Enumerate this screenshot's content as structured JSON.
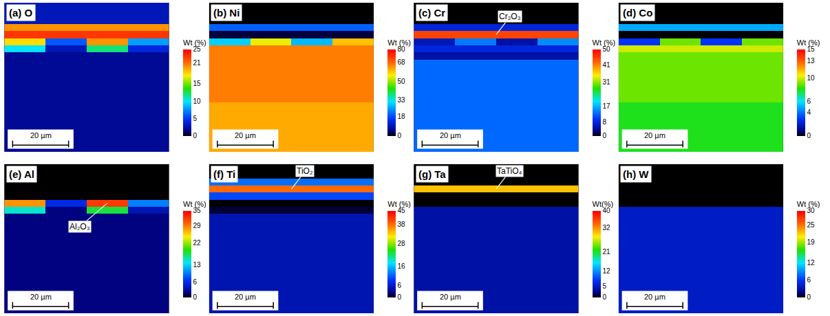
{
  "chart_data": [
    {
      "type": "heatmap",
      "title": "(a) O",
      "colorbar_title": "Wt (%)",
      "zlim": [
        0,
        25
      ],
      "zticks": [
        0,
        5,
        10,
        15,
        21,
        25
      ],
      "scale_bar": "20 µm",
      "tick_labels": false,
      "z": [
        [
          3,
          3,
          3,
          3
        ],
        [
          3,
          3,
          3,
          3
        ],
        [
          3,
          3,
          3,
          3
        ],
        [
          20,
          20,
          20,
          20
        ],
        [
          23,
          23,
          23,
          23
        ],
        [
          18,
          6,
          20,
          8
        ],
        [
          10,
          3,
          12,
          4
        ],
        [
          2,
          2,
          2,
          2
        ],
        [
          2,
          2,
          2,
          2
        ],
        [
          2,
          2,
          2,
          2
        ],
        [
          2,
          2,
          2,
          2
        ],
        [
          2,
          2,
          2,
          2
        ],
        [
          2,
          2,
          2,
          2
        ],
        [
          2,
          2,
          2,
          2
        ],
        [
          2,
          2,
          2,
          2
        ],
        [
          2,
          2,
          2,
          2
        ],
        [
          2,
          2,
          2,
          2
        ],
        [
          2,
          2,
          2,
          2
        ],
        [
          2,
          2,
          2,
          2
        ],
        [
          2,
          2,
          2,
          2
        ],
        [
          2,
          2,
          2,
          2
        ]
      ]
    },
    {
      "type": "heatmap",
      "title": "(b) Ni",
      "colorbar_title": "Wt (%)",
      "zlim": [
        0,
        80
      ],
      "zticks": [
        0,
        18,
        33,
        50,
        68,
        80
      ],
      "scale_bar": "20 µm",
      "tick_labels": false,
      "z": [
        [
          0,
          0,
          0,
          0
        ],
        [
          0,
          0,
          0,
          0
        ],
        [
          0,
          0,
          0,
          0
        ],
        [
          20,
          20,
          20,
          20
        ],
        [
          2,
          2,
          2,
          2
        ],
        [
          30,
          55,
          28,
          60
        ],
        [
          66,
          66,
          66,
          66
        ],
        [
          66,
          66,
          66,
          66
        ],
        [
          66,
          66,
          66,
          66
        ],
        [
          66,
          66,
          66,
          66
        ],
        [
          66,
          66,
          66,
          66
        ],
        [
          66,
          66,
          66,
          66
        ],
        [
          66,
          66,
          66,
          66
        ],
        [
          66,
          66,
          66,
          66
        ],
        [
          62,
          62,
          62,
          62
        ],
        [
          62,
          62,
          62,
          62
        ],
        [
          62,
          62,
          62,
          62
        ],
        [
          62,
          62,
          62,
          62
        ],
        [
          62,
          62,
          62,
          62
        ],
        [
          62,
          62,
          62,
          62
        ],
        [
          62,
          62,
          62,
          62
        ]
      ]
    },
    {
      "type": "heatmap",
      "title": "(c) Cr",
      "colorbar_title": "Wt (%)",
      "zlim": [
        0,
        50
      ],
      "zticks": [
        0,
        8,
        17,
        31,
        41,
        50
      ],
      "scale_bar": "20 µm",
      "tick_labels": false,
      "annotation": "Cr₂O₃",
      "z": [
        [
          0,
          0,
          0,
          0
        ],
        [
          0,
          0,
          0,
          0
        ],
        [
          0,
          0,
          0,
          0
        ],
        [
          8,
          8,
          8,
          8
        ],
        [
          45,
          45,
          45,
          45
        ],
        [
          6,
          14,
          5,
          15
        ],
        [
          8,
          8,
          8,
          8
        ],
        [
          5,
          5,
          5,
          5
        ],
        [
          13,
          13,
          13,
          13
        ],
        [
          13,
          13,
          13,
          13
        ],
        [
          13,
          13,
          13,
          13
        ],
        [
          13,
          13,
          13,
          13
        ],
        [
          13,
          13,
          13,
          13
        ],
        [
          13,
          13,
          13,
          13
        ],
        [
          13,
          13,
          13,
          13
        ],
        [
          13,
          13,
          13,
          13
        ],
        [
          13,
          13,
          13,
          13
        ],
        [
          13,
          13,
          13,
          13
        ],
        [
          13,
          13,
          13,
          13
        ],
        [
          13,
          13,
          13,
          13
        ],
        [
          13,
          13,
          13,
          13
        ]
      ]
    },
    {
      "type": "heatmap",
      "title": "(d) Co",
      "colorbar_title": "Wt (%)",
      "zlim": [
        0,
        15
      ],
      "zticks": [
        0,
        4,
        6,
        10,
        13,
        15
      ],
      "scale_bar": "20 µm",
      "tick_labels": false,
      "z": [
        [
          0,
          0,
          0,
          0
        ],
        [
          0,
          0,
          0,
          0
        ],
        [
          0,
          0,
          0,
          0
        ],
        [
          5,
          5,
          5,
          5
        ],
        [
          0,
          0,
          0,
          0
        ],
        [
          3,
          9,
          3,
          9
        ],
        [
          10,
          10,
          10,
          10
        ],
        [
          9,
          9,
          9,
          9
        ],
        [
          9,
          9,
          9,
          9
        ],
        [
          9,
          9,
          9,
          9
        ],
        [
          9,
          9,
          9,
          9
        ],
        [
          9,
          9,
          9,
          9
        ],
        [
          9,
          9,
          9,
          9
        ],
        [
          9,
          9,
          9,
          9
        ],
        [
          8,
          8,
          8,
          8
        ],
        [
          8,
          8,
          8,
          8
        ],
        [
          8,
          8,
          8,
          8
        ],
        [
          8,
          8,
          8,
          8
        ],
        [
          8,
          8,
          8,
          8
        ],
        [
          8,
          8,
          8,
          8
        ],
        [
          8,
          8,
          8,
          8
        ]
      ]
    },
    {
      "type": "heatmap",
      "title": "(e) Al",
      "colorbar_title": "Wt (%)",
      "zlim": [
        0,
        35
      ],
      "zticks": [
        0,
        6,
        13,
        22,
        29,
        35
      ],
      "scale_bar": "20 µm",
      "tick_labels": false,
      "annotation": "Al₂O₃",
      "z": [
        [
          0,
          0,
          0,
          0
        ],
        [
          0,
          0,
          0,
          0
        ],
        [
          0,
          0,
          0,
          0
        ],
        [
          0,
          0,
          0,
          0
        ],
        [
          0,
          0,
          0,
          0
        ],
        [
          28,
          6,
          32,
          10
        ],
        [
          15,
          2,
          18,
          4
        ],
        [
          2,
          2,
          2,
          2
        ],
        [
          2,
          2,
          2,
          2
        ],
        [
          2,
          2,
          2,
          2
        ],
        [
          2,
          2,
          2,
          2
        ],
        [
          2,
          2,
          2,
          2
        ],
        [
          2,
          2,
          2,
          2
        ],
        [
          2,
          2,
          2,
          2
        ],
        [
          2,
          2,
          2,
          2
        ],
        [
          2,
          2,
          2,
          2
        ],
        [
          2,
          2,
          2,
          2
        ],
        [
          2,
          2,
          2,
          2
        ],
        [
          2,
          2,
          2,
          2
        ],
        [
          2,
          2,
          2,
          2
        ],
        [
          2,
          2,
          2,
          2
        ]
      ]
    },
    {
      "type": "heatmap",
      "title": "(f) Ti",
      "colorbar_title": "Wt (%)",
      "zlim": [
        0,
        45
      ],
      "zticks": [
        0,
        6,
        16,
        28,
        38,
        45
      ],
      "scale_bar": "20 µm",
      "tick_labels": false,
      "annotation": "TiO₂",
      "z": [
        [
          0,
          0,
          0,
          0
        ],
        [
          0,
          0,
          0,
          0
        ],
        [
          12,
          12,
          12,
          12
        ],
        [
          38,
          38,
          38,
          38
        ],
        [
          10,
          10,
          10,
          10
        ],
        [
          0,
          0,
          0,
          0
        ],
        [
          1,
          1,
          1,
          1
        ],
        [
          5,
          5,
          5,
          5
        ],
        [
          5,
          5,
          5,
          5
        ],
        [
          5,
          5,
          5,
          5
        ],
        [
          5,
          5,
          5,
          5
        ],
        [
          5,
          5,
          5,
          5
        ],
        [
          5,
          5,
          5,
          5
        ],
        [
          5,
          5,
          5,
          5
        ],
        [
          5,
          5,
          5,
          5
        ],
        [
          5,
          5,
          5,
          5
        ],
        [
          5,
          5,
          5,
          5
        ],
        [
          5,
          5,
          5,
          5
        ],
        [
          5,
          5,
          5,
          5
        ],
        [
          5,
          5,
          5,
          5
        ],
        [
          5,
          5,
          5,
          5
        ]
      ]
    },
    {
      "type": "heatmap",
      "title": "(g) Ta",
      "colorbar_title": "Wt(%)",
      "zlim": [
        0,
        40
      ],
      "zticks": [
        0,
        5,
        12,
        21,
        32,
        40
      ],
      "scale_bar": "20 µm",
      "tick_labels": false,
      "annotation": "TaTiO₄",
      "z": [
        [
          0,
          0,
          0,
          0
        ],
        [
          0,
          0,
          0,
          0
        ],
        [
          0,
          0,
          0,
          0
        ],
        [
          30,
          30,
          30,
          30
        ],
        [
          0,
          0,
          0,
          0
        ],
        [
          0,
          0,
          0,
          0
        ],
        [
          4,
          4,
          4,
          4
        ],
        [
          4,
          4,
          4,
          4
        ],
        [
          4,
          4,
          4,
          4
        ],
        [
          4,
          4,
          4,
          4
        ],
        [
          4,
          4,
          4,
          4
        ],
        [
          4,
          4,
          4,
          4
        ],
        [
          4,
          4,
          4,
          4
        ],
        [
          4,
          4,
          4,
          4
        ],
        [
          4,
          4,
          4,
          4
        ],
        [
          4,
          4,
          4,
          4
        ],
        [
          4,
          4,
          4,
          4
        ],
        [
          4,
          4,
          4,
          4
        ],
        [
          4,
          4,
          4,
          4
        ],
        [
          4,
          4,
          4,
          4
        ],
        [
          4,
          4,
          4,
          4
        ]
      ]
    },
    {
      "type": "heatmap",
      "title": "(h) W",
      "colorbar_title": "Wt (%)",
      "zlim": [
        0,
        30
      ],
      "zticks": [
        0,
        6,
        12,
        19,
        25,
        30
      ],
      "scale_bar": "20 µm",
      "tick_labels": false,
      "z": [
        [
          0,
          0,
          0,
          0
        ],
        [
          0,
          0,
          0,
          0
        ],
        [
          0,
          0,
          0,
          0
        ],
        [
          0,
          0,
          0,
          0
        ],
        [
          0,
          0,
          0,
          0
        ],
        [
          0,
          0,
          0,
          0
        ],
        [
          4,
          4,
          4,
          4
        ],
        [
          4,
          4,
          4,
          4
        ],
        [
          4,
          4,
          4,
          4
        ],
        [
          4,
          4,
          4,
          4
        ],
        [
          4,
          4,
          4,
          4
        ],
        [
          4,
          4,
          4,
          4
        ],
        [
          4,
          4,
          4,
          4
        ],
        [
          4,
          4,
          4,
          4
        ],
        [
          4,
          4,
          4,
          4
        ],
        [
          4,
          4,
          4,
          4
        ],
        [
          4,
          4,
          4,
          4
        ],
        [
          4,
          4,
          4,
          4
        ],
        [
          4,
          4,
          4,
          4
        ],
        [
          4,
          4,
          4,
          4
        ],
        [
          4,
          4,
          4,
          4
        ]
      ]
    }
  ]
}
